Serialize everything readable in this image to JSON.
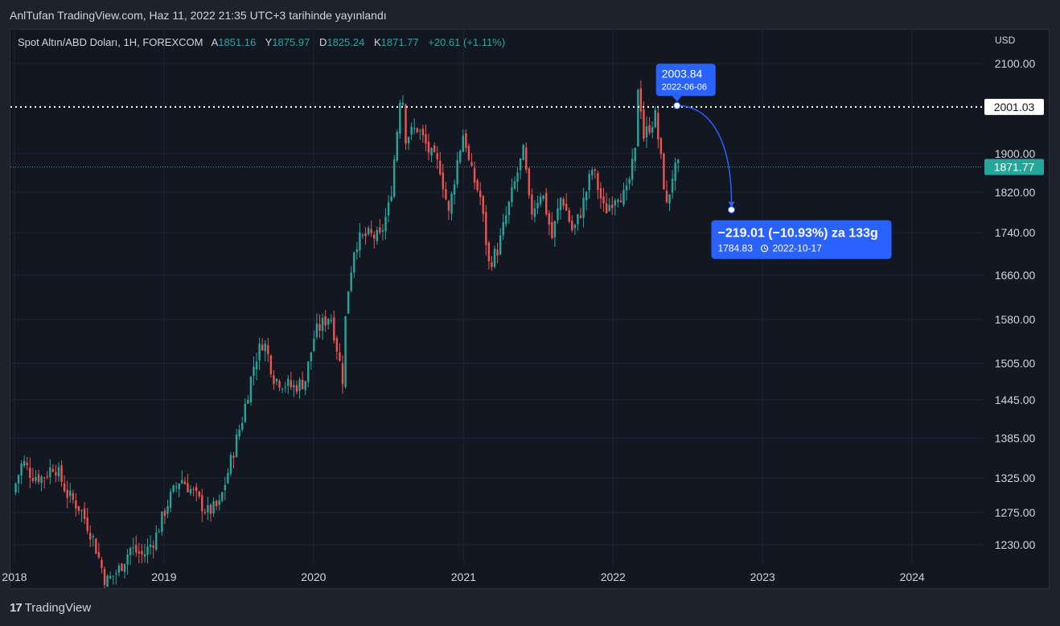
{
  "header": {
    "published": "AnlTufan TradingView.com, Haz 11, 2022 21:35 UTC+3 tarihinde yayınlandı"
  },
  "legend": {
    "symbol": "Spot Altın/ABD Doları, 1H, FOREXCOM",
    "a_label": "A",
    "a_value": "1851.16",
    "y_label": "Y",
    "y_value": "1875.97",
    "d_label": "D",
    "d_value": "1825.24",
    "k_label": "K",
    "k_value": "1871.77",
    "change": "+20.61 (+1.11%)"
  },
  "axis": {
    "currency": "USD"
  },
  "footer": {
    "logo_text": "TradingView",
    "logo_mark": "17"
  },
  "colors": {
    "up": "#26a69a",
    "down": "#ef5350",
    "accent": "#2962ff",
    "background": "#131722",
    "grid": "#1f2430"
  },
  "chart_data": {
    "type": "candlestick",
    "y_scale": "log",
    "ylim": [
      1205,
      2130
    ],
    "y_ticks": [
      2100.0,
      1900.0,
      1820.0,
      1740.0,
      1660.0,
      1580.0,
      1505.0,
      1445.0,
      1385.0,
      1325.0,
      1275.0,
      1230.0
    ],
    "y_tick_labels": [
      "2100.00",
      "1900.00",
      "1820.00",
      "1740.00",
      "1660.00",
      "1580.00",
      "1505.00",
      "1445.00",
      "1385.00",
      "1325.00",
      "1275.00",
      "1230.00"
    ],
    "x_ticks": [
      "2018",
      "2019",
      "2020",
      "2021",
      "2022",
      "2023",
      "2024"
    ],
    "xlim": [
      "2018-01-01",
      "2024-07-15"
    ],
    "price_path": [
      [
        "2018-01-01",
        1303
      ],
      [
        "2018-01-25",
        1350
      ],
      [
        "2018-02-15",
        1330
      ],
      [
        "2018-03-15",
        1325
      ],
      [
        "2018-04-12",
        1345
      ],
      [
        "2018-05-15",
        1300
      ],
      [
        "2018-06-15",
        1280
      ],
      [
        "2018-07-15",
        1240
      ],
      [
        "2018-08-16",
        1180
      ],
      [
        "2018-09-15",
        1195
      ],
      [
        "2018-10-15",
        1225
      ],
      [
        "2018-11-15",
        1215
      ],
      [
        "2018-12-15",
        1240
      ],
      [
        "2019-01-15",
        1290
      ],
      [
        "2019-02-15",
        1325
      ],
      [
        "2019-03-15",
        1305
      ],
      [
        "2019-04-20",
        1275
      ],
      [
        "2019-05-20",
        1285
      ],
      [
        "2019-06-15",
        1345
      ],
      [
        "2019-07-15",
        1415
      ],
      [
        "2019-08-15",
        1510
      ],
      [
        "2019-09-05",
        1545
      ],
      [
        "2019-10-01",
        1480
      ],
      [
        "2019-11-15",
        1465
      ],
      [
        "2019-12-15",
        1475
      ],
      [
        "2020-01-08",
        1555
      ],
      [
        "2020-02-15",
        1590
      ],
      [
        "2020-03-16",
        1480
      ],
      [
        "2020-03-25",
        1610
      ],
      [
        "2020-04-15",
        1720
      ],
      [
        "2020-05-15",
        1735
      ],
      [
        "2020-06-15",
        1730
      ],
      [
        "2020-07-10",
        1800
      ],
      [
        "2020-07-28",
        1960
      ],
      [
        "2020-08-07",
        2065
      ],
      [
        "2020-08-15",
        1935
      ],
      [
        "2020-09-15",
        1955
      ],
      [
        "2020-10-15",
        1900
      ],
      [
        "2020-11-09",
        1870
      ],
      [
        "2020-11-30",
        1775
      ],
      [
        "2020-12-20",
        1880
      ],
      [
        "2021-01-06",
        1950
      ],
      [
        "2021-01-20",
        1870
      ],
      [
        "2021-02-15",
        1810
      ],
      [
        "2021-03-08",
        1680
      ],
      [
        "2021-03-31",
        1710
      ],
      [
        "2021-04-20",
        1775
      ],
      [
        "2021-05-20",
        1870
      ],
      [
        "2021-06-01",
        1905
      ],
      [
        "2021-06-17",
        1775
      ],
      [
        "2021-07-15",
        1825
      ],
      [
        "2021-08-09",
        1730
      ],
      [
        "2021-09-01",
        1815
      ],
      [
        "2021-09-29",
        1740
      ],
      [
        "2021-10-20",
        1785
      ],
      [
        "2021-11-16",
        1870
      ],
      [
        "2021-12-15",
        1780
      ],
      [
        "2022-01-15",
        1820
      ],
      [
        "2022-02-05",
        1810
      ],
      [
        "2022-02-28",
        1900
      ],
      [
        "2022-03-08",
        2070
      ],
      [
        "2022-03-20",
        1935
      ],
      [
        "2022-04-18",
        1980
      ],
      [
        "2022-05-16",
        1790
      ],
      [
        "2022-05-30",
        1855
      ],
      [
        "2022-06-11",
        1871.77
      ]
    ],
    "last_price": 1871.77,
    "last_price_label": "1871.77",
    "horizontal_line": {
      "value": 2001.03,
      "label": "2001.03"
    },
    "projection": {
      "start": {
        "date": "2022-06-06",
        "price": 2003.84,
        "price_label": "2003.84",
        "date_label": "2022-06-06"
      },
      "end": {
        "date": "2022-10-17",
        "price": 1784.83,
        "headline": "−219.01 (−10.93%) za 133g",
        "price_label": "1784.83",
        "date_label": "2022-10-17"
      }
    }
  }
}
